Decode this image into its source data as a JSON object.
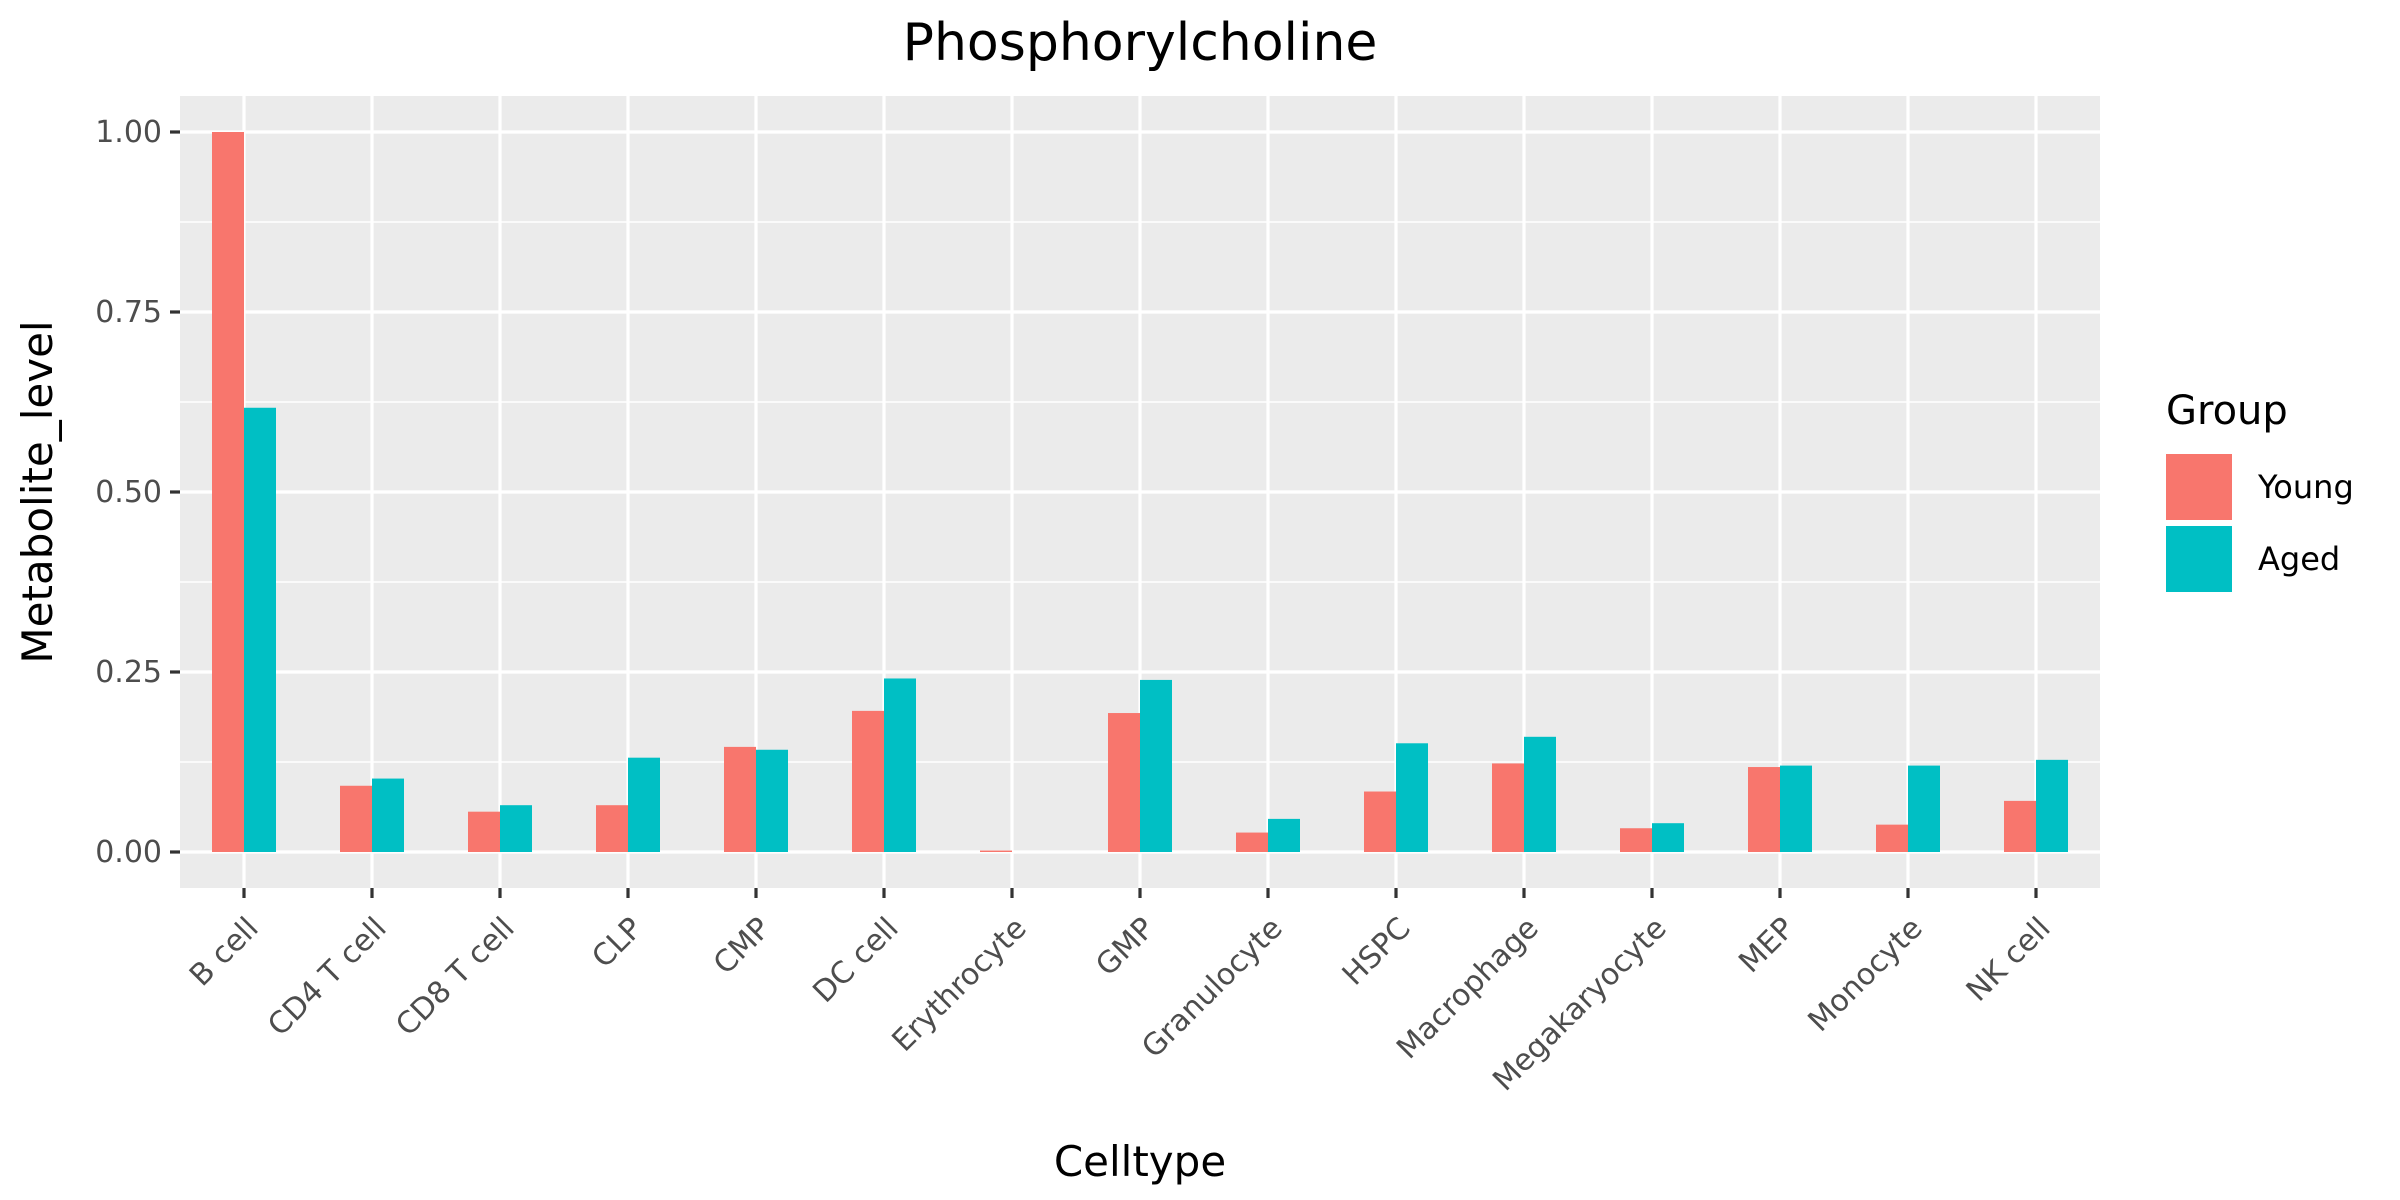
{
  "chart_data": {
    "type": "bar",
    "title": "Phosphorylcholine",
    "xlabel": "Celltype",
    "ylabel": "Metabolite_level",
    "categories": [
      "B cell",
      "CD4 T cell",
      "CD8 T cell",
      "CLP",
      "CMP",
      "DC cell",
      "Erythrocyte",
      "GMP",
      "Granulocyte",
      "HSPC",
      "Macrophage",
      "Megakaryocyte",
      "MEP",
      "Monocyte",
      "NK cell"
    ],
    "series": [
      {
        "name": "Young",
        "color": "#F8766D",
        "values": [
          1.0,
          0.092,
          0.056,
          0.065,
          0.146,
          0.196,
          0.002,
          0.193,
          0.027,
          0.084,
          0.123,
          0.033,
          0.118,
          0.038,
          0.071
        ]
      },
      {
        "name": "Aged",
        "color": "#00BFC4",
        "values": [
          0.617,
          0.102,
          0.065,
          0.131,
          0.142,
          0.241,
          0.0,
          0.239,
          0.046,
          0.151,
          0.16,
          0.04,
          0.12,
          0.12,
          0.128
        ]
      }
    ],
    "ylim": [
      -0.05,
      1.05
    ],
    "yticks": [
      0.0,
      0.25,
      0.5,
      0.75,
      1.0
    ],
    "ytick_labels": [
      "0.00",
      "0.25",
      "0.50",
      "0.75",
      "1.00"
    ],
    "grid": true,
    "legend": {
      "title": "Group",
      "position": "right"
    },
    "panel_background": "#EBEBEB"
  }
}
